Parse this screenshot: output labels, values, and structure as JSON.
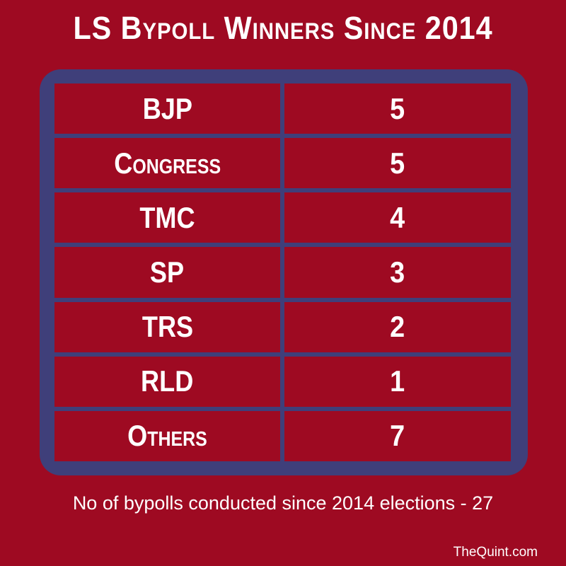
{
  "title": "LS Bypoll Winners Since 2014",
  "footnote": "No of bypolls conducted since 2014 elections - 27",
  "credit": "TheQuint.com",
  "colors": {
    "background": "#9e0a22",
    "frame": "#3f3f7a",
    "text": "#ffffff"
  },
  "chart_data": {
    "type": "table",
    "title": "LS Bypoll Winners Since 2014",
    "rows": [
      {
        "party": "BJP",
        "value": 5
      },
      {
        "party": "Congress",
        "value": 5
      },
      {
        "party": "TMC",
        "value": 4
      },
      {
        "party": "SP",
        "value": 3
      },
      {
        "party": "TRS",
        "value": 2
      },
      {
        "party": "RLD",
        "value": 1
      },
      {
        "party": "Others",
        "value": 7
      }
    ]
  }
}
